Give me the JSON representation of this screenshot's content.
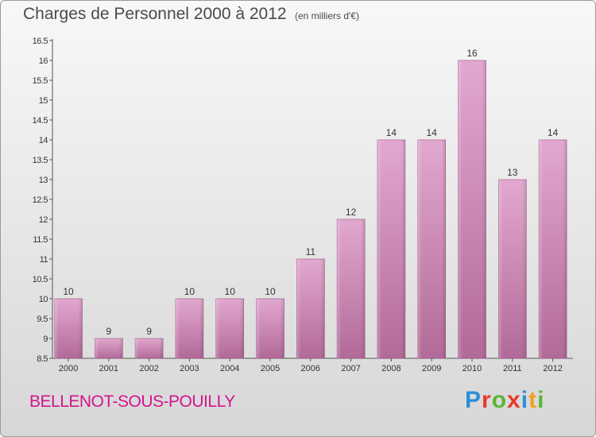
{
  "header": {
    "title": "Charges de Personnel 2000 à 2012",
    "subtitle": "(en milliers d'€)"
  },
  "footer": {
    "commune": "BELLENOT-SOUS-POUILLY",
    "logo": "Proxiti"
  },
  "colors": {
    "bar_top": "#e2a8cf",
    "bar_bottom": "#b26a98",
    "commune_text": "#d4148c",
    "logo_letters": [
      "#2a8fd6",
      "#e83a2c",
      "#5bb536",
      "#e83a2c",
      "#2a8fd6",
      "#f0a020",
      "#5bb536"
    ]
  },
  "chart_data": {
    "type": "bar",
    "title": "Charges de Personnel 2000 à 2012",
    "subtitle": "(en milliers d'€)",
    "categories": [
      "2000",
      "2001",
      "2002",
      "2003",
      "2004",
      "2005",
      "2006",
      "2007",
      "2008",
      "2009",
      "2010",
      "2011",
      "2012"
    ],
    "values": [
      10,
      9,
      9,
      10,
      10,
      10,
      11,
      12,
      14,
      14,
      16,
      13,
      14
    ],
    "data_labels": [
      "10",
      "9",
      "9",
      "10",
      "10",
      "10",
      "11",
      "12",
      "14",
      "14",
      "16",
      "13",
      "14"
    ],
    "ylim": [
      8.5,
      16.5
    ],
    "yticks": [
      "8.5",
      "9",
      "9.5",
      "10",
      "10.5",
      "11",
      "11.5",
      "12",
      "12.5",
      "13",
      "13.5",
      "14",
      "14.5",
      "15",
      "15.5",
      "16",
      "16.5"
    ],
    "grid": false,
    "xlabel": "",
    "ylabel": ""
  }
}
